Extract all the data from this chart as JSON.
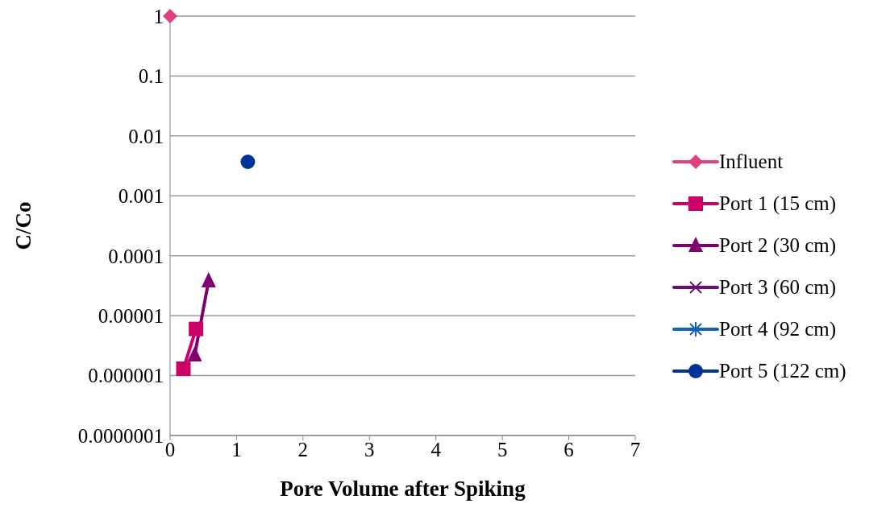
{
  "chart_data": {
    "type": "line",
    "xlabel": "Pore Volume after Spiking",
    "ylabel": "C/Co",
    "log": "y",
    "xlim": [
      0,
      7
    ],
    "xticks": [
      0,
      1,
      2,
      3,
      4,
      5,
      6,
      7
    ],
    "ylim": [
      1e-07,
      1
    ],
    "yticks": [
      {
        "value": 1,
        "label": "1"
      },
      {
        "value": 0.1,
        "label": "0.1"
      },
      {
        "value": 0.01,
        "label": "0.01"
      },
      {
        "value": 0.001,
        "label": "0.001"
      },
      {
        "value": 0.0001,
        "label": "0.0001"
      },
      {
        "value": 1e-05,
        "label": "0.00001"
      },
      {
        "value": 1e-06,
        "label": "0.000001"
      },
      {
        "value": 1e-07,
        "label": "0.0000001"
      }
    ],
    "grid": "y",
    "legend": "right",
    "series": [
      {
        "name": "Influent",
        "color": "#e0407f",
        "marker": "diamond",
        "x": [
          0
        ],
        "values": [
          1
        ]
      },
      {
        "name": "Port 1 (15 cm)",
        "color": "#cc0066",
        "marker": "square",
        "x": [
          0.2,
          0.39
        ],
        "values": [
          1.3e-06,
          6e-06
        ]
      },
      {
        "name": "Port 2 (30 cm)",
        "color": "#800070",
        "marker": "triangle",
        "x": [
          0.37,
          0.58
        ],
        "values": [
          2.2e-06,
          3.8e-05
        ]
      },
      {
        "name": "Port 3 (60 cm)",
        "color": "#660e7a",
        "marker": "cross"
      },
      {
        "name": "Port 4 (92 cm)",
        "color": "#1560bd",
        "marker": "star"
      },
      {
        "name": "Port 5 (122 cm)",
        "color": "#003399",
        "marker": "circle",
        "x": [
          1.17
        ],
        "values": [
          0.0037
        ]
      }
    ]
  }
}
